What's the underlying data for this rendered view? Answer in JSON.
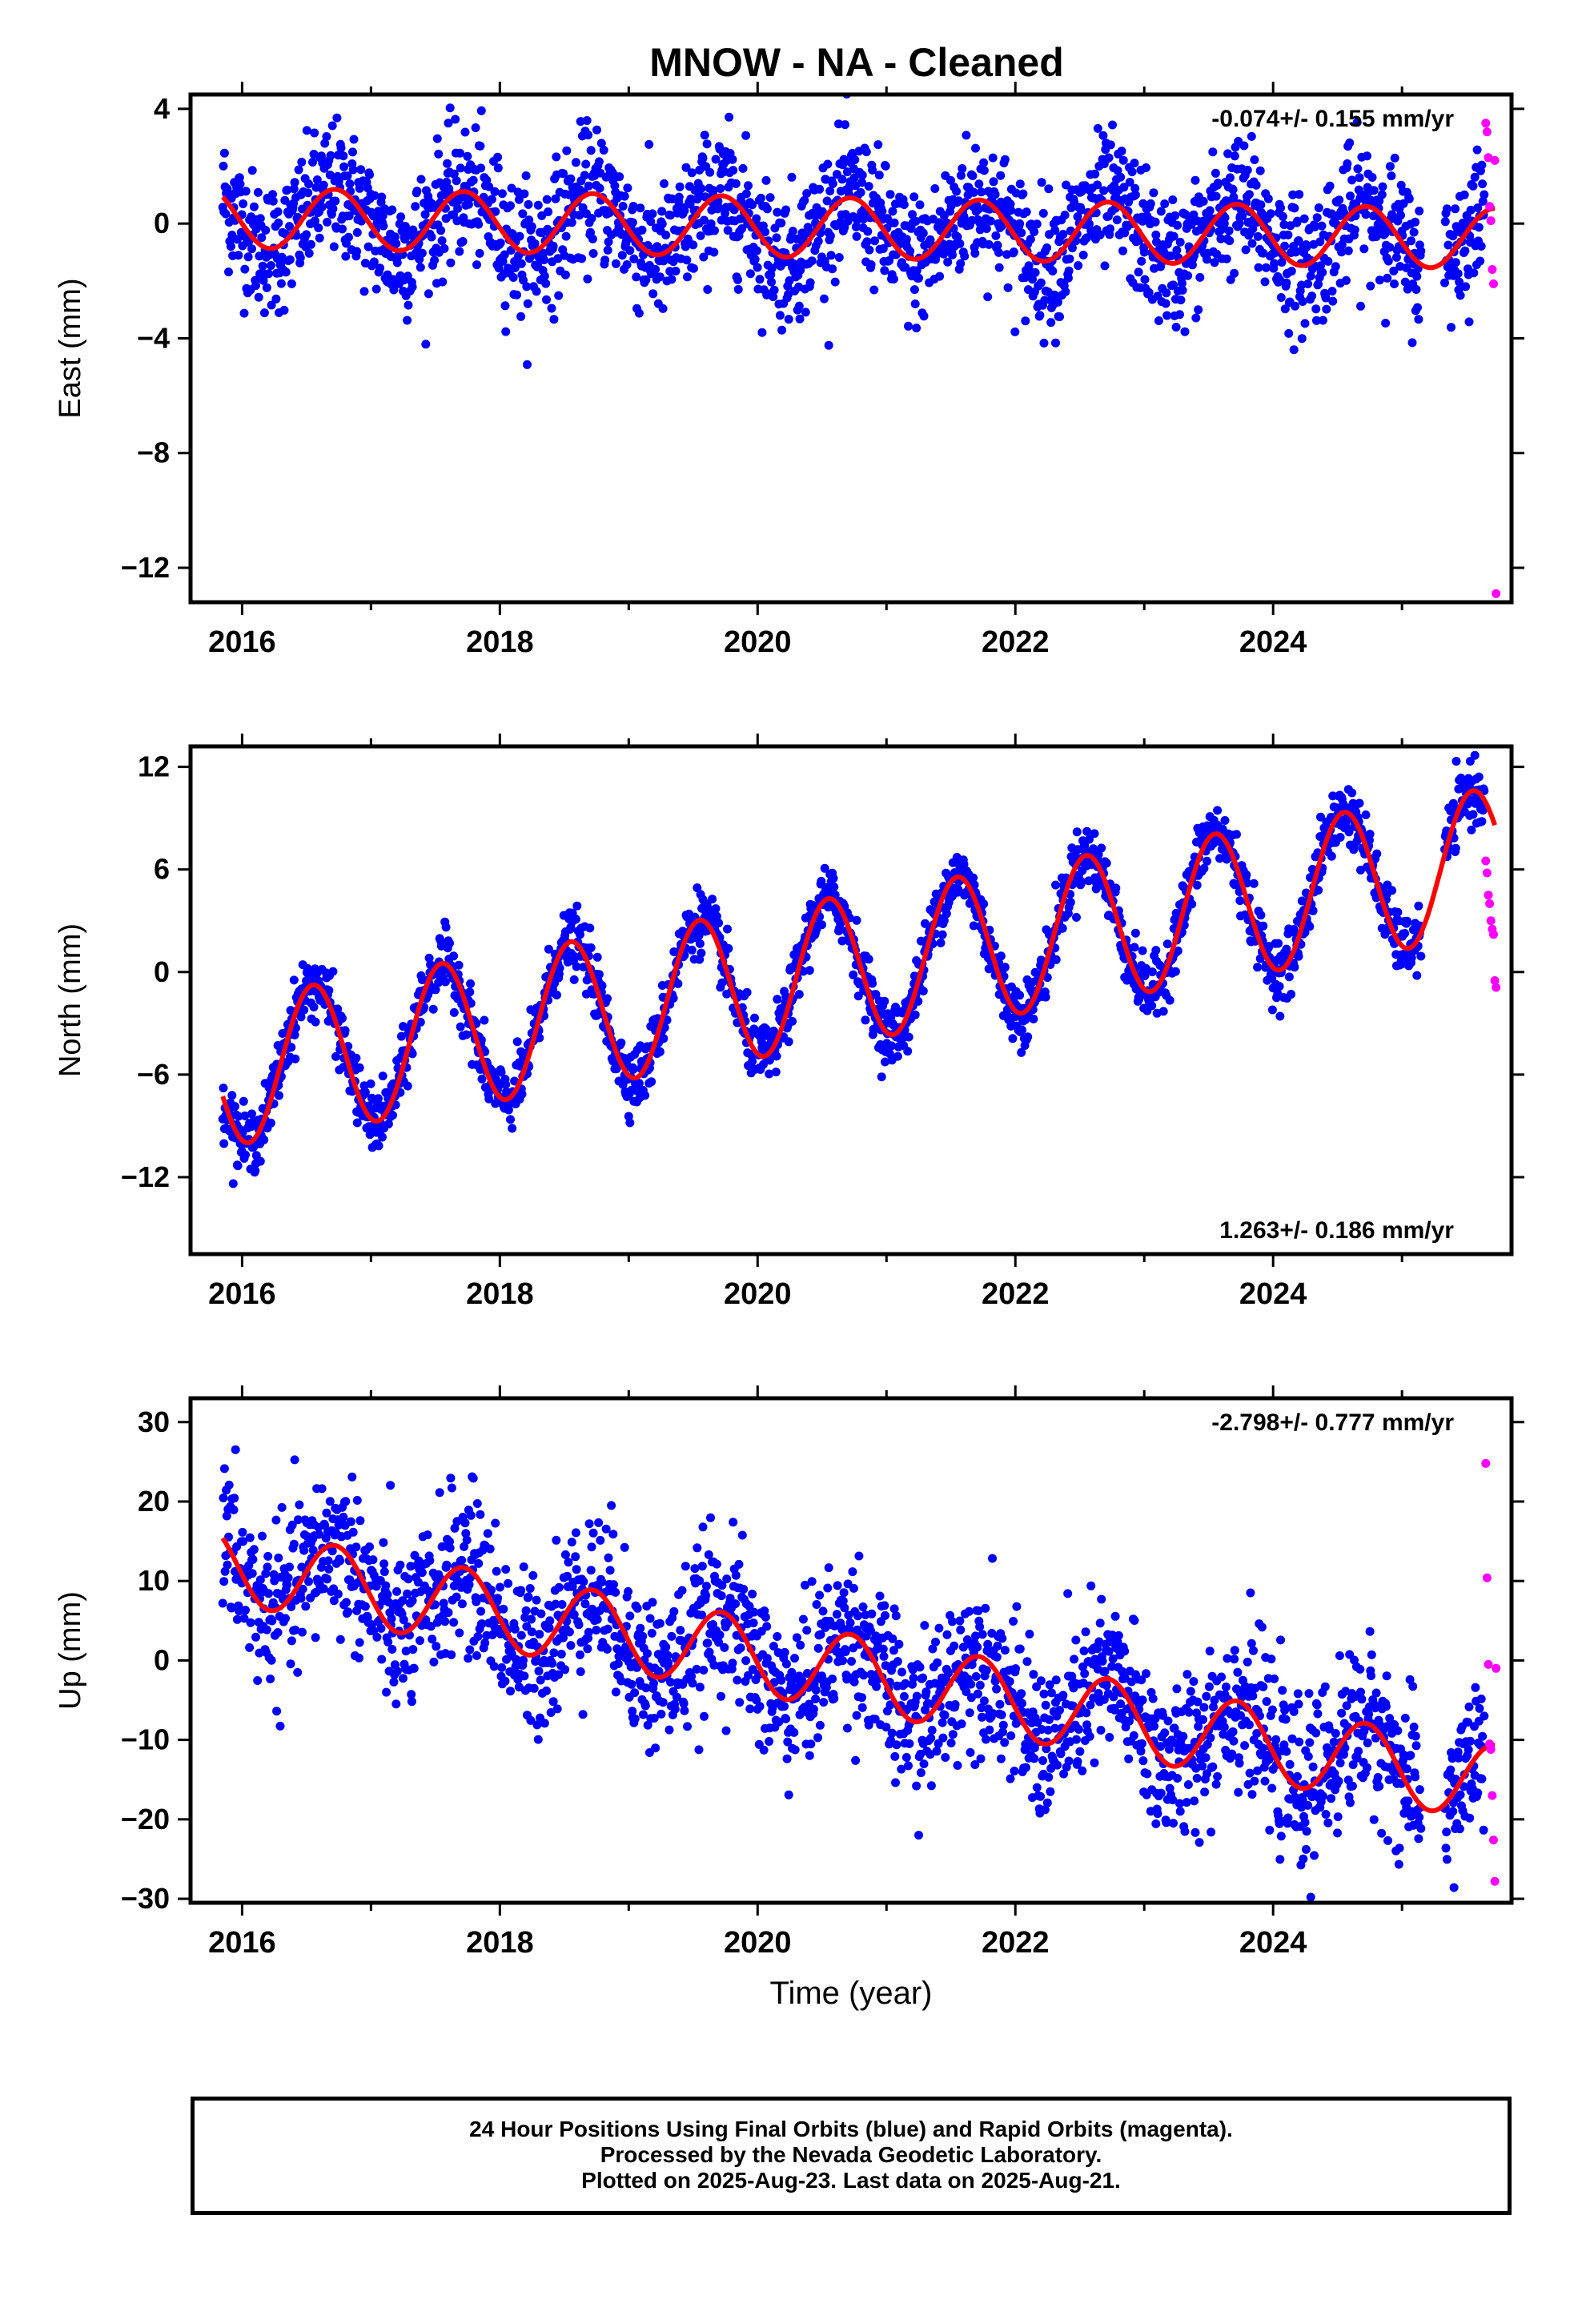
{
  "title": "MNOW  - NA - Cleaned",
  "chart_data": [
    {
      "type": "scatter",
      "panel": "east",
      "ylabel": "East (mm)",
      "xlabel": "",
      "xlim": [
        2015.6,
        2025.85
      ],
      "ylim": [
        -13.2,
        4.5
      ],
      "yticks": [
        4,
        0,
        -4,
        -8,
        -12
      ],
      "xticks": [
        2016,
        2018,
        2020,
        2022,
        2024
      ],
      "rate_label": "-0.074+/- 0.155 mm/yr",
      "rate_position": "top-right",
      "model": {
        "offset": -0.1,
        "rate": -0.074,
        "amplitude": 1.05,
        "peak_phase": 0.72,
        "ref_year": 2020.0
      },
      "scatter_noise": 1.15,
      "series": [
        {
          "name": "Final Orbits",
          "color": "#0000ff"
        },
        {
          "name": "Rapid Orbits",
          "color": "#ff00ff",
          "x": [
            2025.65,
            2025.66,
            2025.67,
            2025.68,
            2025.69,
            2025.7,
            2025.71,
            2025.72,
            2025.73
          ],
          "y": [
            3.5,
            3.2,
            2.3,
            0.6,
            0.1,
            -1.6,
            -2.1,
            2.2,
            -12.9
          ]
        },
        {
          "name": "Model fit",
          "color": "#ff0000"
        }
      ]
    },
    {
      "type": "scatter",
      "panel": "north",
      "ylabel": "North (mm)",
      "xlabel": "",
      "xlim": [
        2015.6,
        2025.85
      ],
      "ylim": [
        -16.5,
        13.2
      ],
      "yticks": [
        12,
        6,
        0,
        -6,
        -12
      ],
      "xticks": [
        2016,
        2018,
        2020,
        2022,
        2024
      ],
      "rate_label": "1.263+/- 0.186 mm/yr",
      "rate_position": "bottom-right",
      "model": {
        "offset": -0.7,
        "rate": 1.263,
        "amplitude": 4.3,
        "peak_phase": 0.55,
        "ref_year": 2020.0
      },
      "scatter_noise": 0.9,
      "series": [
        {
          "name": "Final Orbits",
          "color": "#0000ff"
        },
        {
          "name": "Rapid Orbits",
          "color": "#ff00ff",
          "x": [
            2025.65,
            2025.66,
            2025.67,
            2025.68,
            2025.69,
            2025.7,
            2025.71,
            2025.72,
            2025.73
          ],
          "y": [
            6.5,
            5.8,
            4.5,
            4.0,
            3.0,
            2.5,
            2.2,
            -0.5,
            -0.9
          ]
        },
        {
          "name": "Model fit",
          "color": "#ff0000"
        }
      ]
    },
    {
      "type": "scatter",
      "panel": "up",
      "ylabel": "Up (mm)",
      "xlabel": "Time (year)",
      "xlim": [
        2015.6,
        2025.85
      ],
      "ylim": [
        -30.5,
        33
      ],
      "yticks": [
        30,
        20,
        10,
        0,
        -10,
        -20,
        -30
      ],
      "xticks": [
        2016,
        2018,
        2020,
        2022,
        2024
      ],
      "rate_label": "-2.798+/- 0.777 mm/yr",
      "rate_position": "top-right",
      "model": {
        "offset": 0.5,
        "rate": -2.798,
        "amplitude": 4.8,
        "peak_phase": 0.72,
        "ref_year": 2020.0
      },
      "scatter_noise": 5.0,
      "series": [
        {
          "name": "Final Orbits",
          "color": "#0000ff"
        },
        {
          "name": "Rapid Orbits",
          "color": "#ff00ff",
          "x": [
            2025.65,
            2025.66,
            2025.67,
            2025.68,
            2025.69,
            2025.7,
            2025.71,
            2025.72,
            2025.73
          ],
          "y": [
            24.8,
            10.4,
            -0.5,
            -10.5,
            -11.2,
            -17.0,
            -22.6,
            -27.8,
            -1.0
          ]
        },
        {
          "name": "Model fit",
          "color": "#ff0000"
        }
      ]
    }
  ],
  "footer": {
    "line1": "24 Hour Positions Using Final Orbits (blue) and Rapid Orbits (magenta).",
    "line2": "Processed by the Nevada Geodetic Laboratory.",
    "line3": "Plotted on 2025-Aug-23. Last data on 2025-Aug-21."
  }
}
